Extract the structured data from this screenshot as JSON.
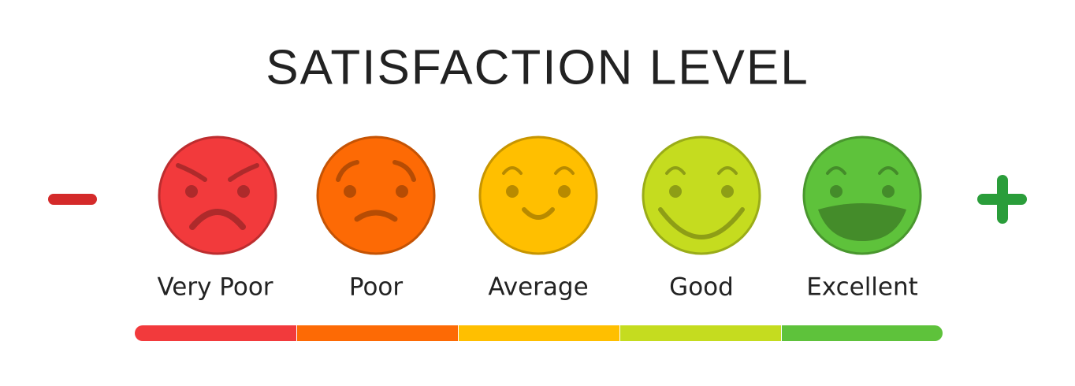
{
  "title": "SATISFACTION LEVEL",
  "levels": [
    {
      "label": "Very Poor",
      "color": "#f23a3c"
    },
    {
      "label": "Poor",
      "color": "#fd6a05"
    },
    {
      "label": "Average",
      "color": "#ffbf00"
    },
    {
      "label": "Good",
      "color": "#c5dc1f"
    },
    {
      "label": "Excellent",
      "color": "#5ec23b"
    }
  ]
}
